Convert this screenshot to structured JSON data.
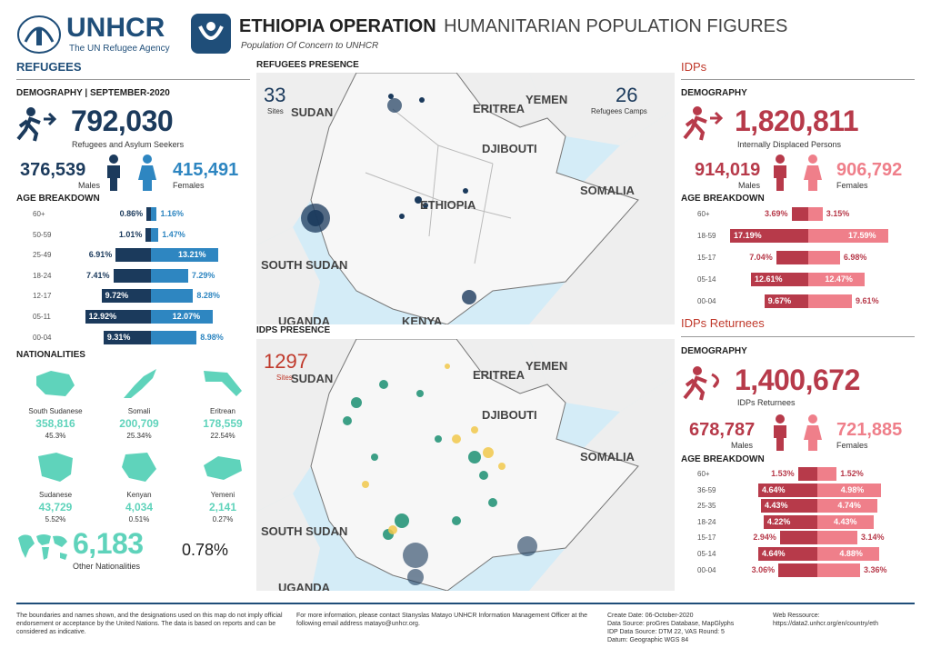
{
  "header": {
    "org": "UNHCR",
    "org_sub": "The UN Refugee Agency",
    "title_bold": "ETHIOPIA OPERATION",
    "title_light": "HUMANITARIAN POPULATION FIGURES",
    "subtitle": "Population Of Concern to UNHCR"
  },
  "refugees": {
    "section": "REFUGEES",
    "demography": "DEMOGRAPHY | SEPTEMBER-2020",
    "total": "792,030",
    "total_label": "Refugees and Asylum Seekers",
    "males": "376,539",
    "males_label": "Males",
    "females": "415,491",
    "females_label": "Females",
    "age_title": "AGE BREAKDOWN",
    "age": [
      {
        "g": "60+",
        "m": "0.86%",
        "f": "1.16%",
        "mv": 0.86,
        "fv": 1.16
      },
      {
        "g": "50-59",
        "m": "1.01%",
        "f": "1.47%",
        "mv": 1.01,
        "fv": 1.47
      },
      {
        "g": "25-49",
        "m": "6.91%",
        "f": "13.21%",
        "mv": 6.91,
        "fv": 13.21
      },
      {
        "g": "18-24",
        "m": "7.41%",
        "f": "7.29%",
        "mv": 7.41,
        "fv": 7.29
      },
      {
        "g": "12-17",
        "m": "9.72%",
        "f": "8.28%",
        "mv": 9.72,
        "fv": 8.28
      },
      {
        "g": "05-11",
        "m": "12.92%",
        "f": "12.07%",
        "mv": 12.92,
        "fv": 12.07
      },
      {
        "g": "00-04",
        "m": "9.31%",
        "f": "8.98%",
        "mv": 9.31,
        "fv": 8.98
      }
    ],
    "nat_title": "NATIONALITIES",
    "nationalities": [
      {
        "name": "South Sudanese",
        "value": "358,816",
        "pct": "45.3%"
      },
      {
        "name": "Somali",
        "value": "200,709",
        "pct": "25.34%"
      },
      {
        "name": "Eritrean",
        "value": "178,559",
        "pct": "22.54%"
      },
      {
        "name": "Sudanese",
        "value": "43,729",
        "pct": "5.52%"
      },
      {
        "name": "Kenyan",
        "value": "4,034",
        "pct": "0.51%"
      },
      {
        "name": "Yemeni",
        "value": "2,141",
        "pct": "0.27%"
      }
    ],
    "other_value": "6,183",
    "other_label": "Other Nationalities",
    "other_pct": "0.78%"
  },
  "maps": {
    "ref_title": "REFUGEES PRESENCE",
    "ref_sites": "33",
    "ref_sites_label": "Sites",
    "ref_camps": "26",
    "ref_camps_label": "Refugees Camps",
    "idp_title": "IDPS PRESENCE",
    "idp_sites": "1297",
    "idp_sites_label": "Sites",
    "labels": {
      "sudan": "SUDAN",
      "eritrea": "ERITREA",
      "yemen": "YEMEN",
      "djibouti": "DJIBOUTI",
      "somalia": "SOMALIA",
      "ethiopia": "ETHIOPIA",
      "south_sudan": "SOUTH SUDAN",
      "uganda": "UGANDA",
      "kenya": "KENYA"
    }
  },
  "idps": {
    "section": "IDPs",
    "demography": "DEMOGRAPHY",
    "total": "1,820,811",
    "total_label": "Internally Displaced Persons",
    "males": "914,019",
    "males_label": "Males",
    "females": "906,792",
    "females_label": "Females",
    "age_title": "AGE BREAKDOWN",
    "age": [
      {
        "g": "60+",
        "m": "3.69%",
        "f": "3.15%",
        "mv": 3.69,
        "fv": 3.15
      },
      {
        "g": "18-59",
        "m": "17.19%",
        "f": "17.59%",
        "mv": 17.19,
        "fv": 17.59
      },
      {
        "g": "15-17",
        "m": "7.04%",
        "f": "6.98%",
        "mv": 7.04,
        "fv": 6.98
      },
      {
        "g": "05-14",
        "m": "12.61%",
        "f": "12.47%",
        "mv": 12.61,
        "fv": 12.47
      },
      {
        "g": "00-04",
        "m": "9.67%",
        "f": "9.61%",
        "mv": 9.67,
        "fv": 9.61
      }
    ]
  },
  "returnees": {
    "section": "IDPs Returnees",
    "demography": "DEMOGRAPHY",
    "total": "1,400,672",
    "total_label": "IDPs Returnees",
    "males": "678,787",
    "males_label": "Males",
    "females": "721,885",
    "females_label": "Females",
    "age_title": "AGE BREAKDOWN",
    "age": [
      {
        "g": "60+",
        "m": "1.53%",
        "f": "1.52%",
        "mv": 1.53,
        "fv": 1.52
      },
      {
        "g": "36-59",
        "m": "4.64%",
        "f": "4.98%",
        "mv": 4.64,
        "fv": 4.98
      },
      {
        "g": "25-35",
        "m": "4.43%",
        "f": "4.74%",
        "mv": 4.43,
        "fv": 4.74
      },
      {
        "g": "18-24",
        "m": "4.22%",
        "f": "4.43%",
        "mv": 4.22,
        "fv": 4.43
      },
      {
        "g": "15-17",
        "m": "2.94%",
        "f": "3.14%",
        "mv": 2.94,
        "fv": 3.14
      },
      {
        "g": "05-14",
        "m": "4.64%",
        "f": "4.88%",
        "mv": 4.64,
        "fv": 4.88
      },
      {
        "g": "00-04",
        "m": "3.06%",
        "f": "3.36%",
        "mv": 3.06,
        "fv": 3.36
      }
    ]
  },
  "footer": {
    "disclaimer": "The boundaries and names shown, and the designations used on this map do not imply official endorsement or acceptance by the United Nations. The data is based on reports and can be considered as indicative.",
    "contact": "For more information, please contact Stanyslas Matayo UNHCR Information Management Officer at the following email address matayo@unhcr.org.",
    "create": "Create Date: 06-October-2020",
    "source1": "Data Source: proGres Database, MapGlyphs",
    "source2": "IDP Data Source: DTM 22, VAS Round: 5",
    "datum": "Datum: Geographic WGS 84",
    "web_label": "Web Ressource:",
    "web": "https://data2.unhcr.org/en/country/eth"
  },
  "colors": {
    "ref_male": "#1b3a5c",
    "ref_female": "#2e86c1",
    "idp_male": "#b73a4a",
    "idp_female": "#ef7f8a",
    "nat": "#5fd3bb",
    "brand": "#1f4e79"
  },
  "chart_data": [
    {
      "type": "bar",
      "title": "AGE BREAKDOWN",
      "categories": [
        "60+",
        "50-59",
        "25-49",
        "18-24",
        "12-17",
        "05-11",
        "00-04"
      ],
      "series": [
        {
          "name": "Males",
          "values": [
            0.86,
            1.01,
            6.91,
            7.41,
            9.72,
            12.92,
            9.31
          ]
        },
        {
          "name": "Females",
          "values": [
            1.16,
            1.47,
            13.21,
            7.29,
            8.28,
            12.07,
            8.98
          ]
        }
      ]
    },
    {
      "type": "bar",
      "title": "AGE BREAKDOWN",
      "categories": [
        "60+",
        "18-59",
        "15-17",
        "05-14",
        "00-04"
      ],
      "series": [
        {
          "name": "Males",
          "values": [
            3.69,
            17.19,
            7.04,
            12.61,
            9.67
          ]
        },
        {
          "name": "Females",
          "values": [
            3.15,
            17.59,
            6.98,
            12.47,
            9.61
          ]
        }
      ]
    },
    {
      "type": "bar",
      "title": "AGE BREAKDOWN",
      "categories": [
        "60+",
        "36-59",
        "25-35",
        "18-24",
        "15-17",
        "05-14",
        "00-04"
      ],
      "series": [
        {
          "name": "Males",
          "values": [
            1.53,
            4.64,
            4.43,
            4.22,
            2.94,
            4.64,
            3.06
          ]
        },
        {
          "name": "Females",
          "values": [
            1.52,
            4.98,
            4.74,
            4.43,
            3.14,
            4.88,
            3.36
          ]
        }
      ]
    }
  ]
}
